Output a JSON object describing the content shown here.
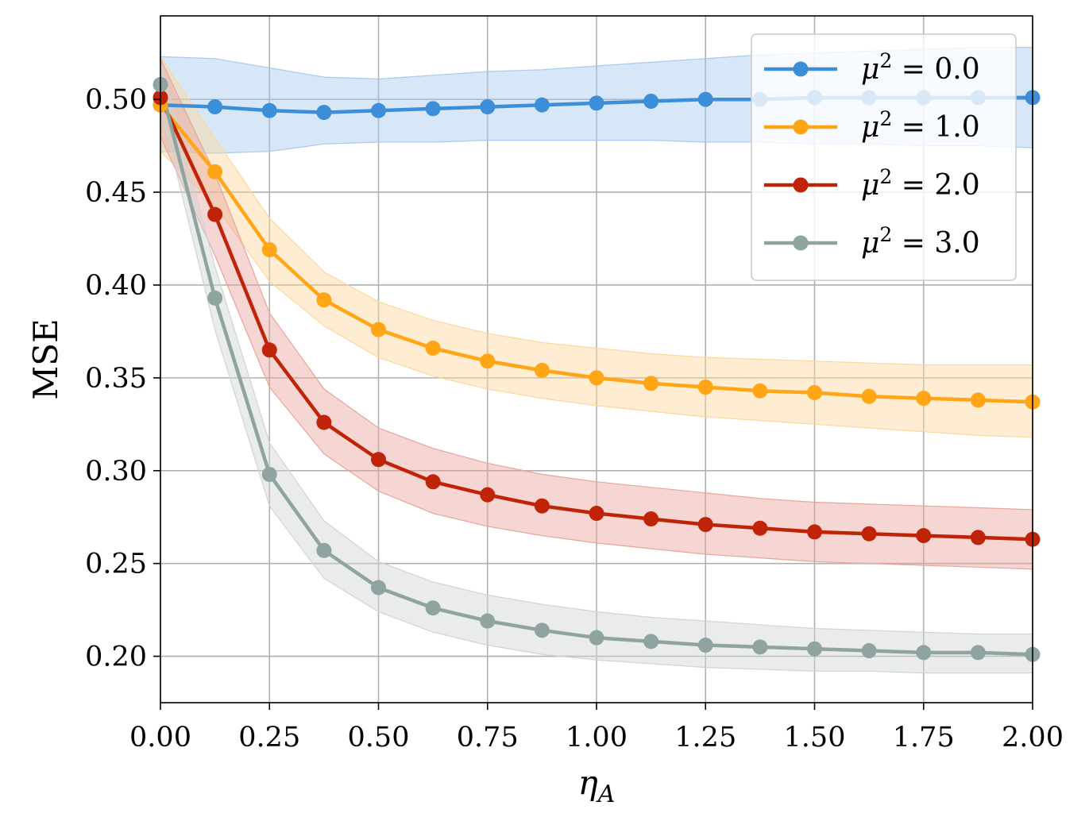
{
  "chart_data": {
    "type": "line",
    "title": "",
    "xlabel": "η",
    "xlabel_subscript": "A",
    "ylabel": "MSE",
    "xlim": [
      0.0,
      2.0
    ],
    "ylim": [
      0.175,
      0.545
    ],
    "grid": true,
    "legend_placement": "top-right",
    "x": [
      0.0,
      0.125,
      0.25,
      0.375,
      0.5,
      0.625,
      0.75,
      0.875,
      1.0,
      1.125,
      1.25,
      1.375,
      1.5,
      1.625,
      1.75,
      1.875,
      2.0
    ],
    "xticks": [
      0.0,
      0.25,
      0.5,
      0.75,
      1.0,
      1.25,
      1.5,
      1.75,
      2.0
    ],
    "xtick_labels": [
      "0.00",
      "0.25",
      "0.50",
      "0.75",
      "1.00",
      "1.25",
      "1.50",
      "1.75",
      "2.00"
    ],
    "yticks": [
      0.2,
      0.25,
      0.3,
      0.35,
      0.4,
      0.45,
      0.5
    ],
    "ytick_labels": [
      "0.20",
      "0.25",
      "0.30",
      "0.35",
      "0.40",
      "0.45",
      "0.50"
    ],
    "series": [
      {
        "name": "μ² = 0.0",
        "legend_mu": "μ",
        "legend_sup": "2",
        "legend_rest": " = 0.0",
        "color": "#3c8ed8",
        "band_color": "#a9c9ee",
        "values": [
          0.497,
          0.496,
          0.494,
          0.493,
          0.494,
          0.495,
          0.496,
          0.497,
          0.498,
          0.499,
          0.5,
          0.5,
          0.501,
          0.501,
          0.501,
          0.501,
          0.501
        ],
        "upper": [
          0.523,
          0.522,
          0.517,
          0.512,
          0.511,
          0.513,
          0.515,
          0.516,
          0.518,
          0.52,
          0.522,
          0.524,
          0.525,
          0.526,
          0.527,
          0.528,
          0.528
        ],
        "lower": [
          0.472,
          0.471,
          0.472,
          0.476,
          0.477,
          0.477,
          0.478,
          0.478,
          0.478,
          0.478,
          0.477,
          0.477,
          0.476,
          0.476,
          0.475,
          0.475,
          0.474
        ]
      },
      {
        "name": "μ² = 1.0",
        "legend_mu": "μ",
        "legend_sup": "2",
        "legend_rest": " = 1.0",
        "color": "#ffa516",
        "band_color": "#fdd69c",
        "values": [
          0.497,
          0.461,
          0.419,
          0.392,
          0.376,
          0.366,
          0.359,
          0.354,
          0.35,
          0.347,
          0.345,
          0.343,
          0.342,
          0.34,
          0.339,
          0.338,
          0.337
        ],
        "upper": [
          0.523,
          0.479,
          0.436,
          0.407,
          0.391,
          0.381,
          0.374,
          0.369,
          0.366,
          0.363,
          0.361,
          0.36,
          0.359,
          0.358,
          0.357,
          0.357,
          0.357
        ],
        "lower": [
          0.472,
          0.443,
          0.402,
          0.378,
          0.361,
          0.351,
          0.344,
          0.339,
          0.335,
          0.332,
          0.329,
          0.327,
          0.325,
          0.323,
          0.321,
          0.319,
          0.318
        ]
      },
      {
        "name": "μ² = 2.0",
        "legend_mu": "μ",
        "legend_sup": "2",
        "legend_rest": " = 2.0",
        "color": "#c02408",
        "band_color": "#e8a59b",
        "values": [
          0.501,
          0.438,
          0.365,
          0.326,
          0.306,
          0.294,
          0.287,
          0.281,
          0.277,
          0.274,
          0.271,
          0.269,
          0.267,
          0.266,
          0.265,
          0.264,
          0.263
        ],
        "upper": [
          0.522,
          0.46,
          0.385,
          0.344,
          0.323,
          0.312,
          0.304,
          0.298,
          0.294,
          0.291,
          0.288,
          0.285,
          0.283,
          0.282,
          0.281,
          0.28,
          0.279
        ],
        "lower": [
          0.48,
          0.416,
          0.345,
          0.309,
          0.289,
          0.277,
          0.27,
          0.265,
          0.261,
          0.258,
          0.255,
          0.253,
          0.251,
          0.25,
          0.249,
          0.248,
          0.247
        ]
      },
      {
        "name": "μ² = 3.0",
        "legend_mu": "μ",
        "legend_sup": "2",
        "legend_rest": " = 3.0",
        "color": "#8fa3a0",
        "band_color": "#cfd5d3",
        "values": [
          0.508,
          0.393,
          0.298,
          0.257,
          0.237,
          0.226,
          0.219,
          0.214,
          0.21,
          0.208,
          0.206,
          0.205,
          0.204,
          0.203,
          0.202,
          0.202,
          0.201
        ],
        "upper": [
          0.52,
          0.41,
          0.315,
          0.273,
          0.251,
          0.24,
          0.233,
          0.228,
          0.224,
          0.221,
          0.219,
          0.217,
          0.215,
          0.214,
          0.213,
          0.212,
          0.212
        ],
        "lower": [
          0.496,
          0.376,
          0.281,
          0.242,
          0.224,
          0.213,
          0.206,
          0.201,
          0.198,
          0.196,
          0.194,
          0.193,
          0.192,
          0.192,
          0.191,
          0.191,
          0.191
        ]
      }
    ]
  }
}
